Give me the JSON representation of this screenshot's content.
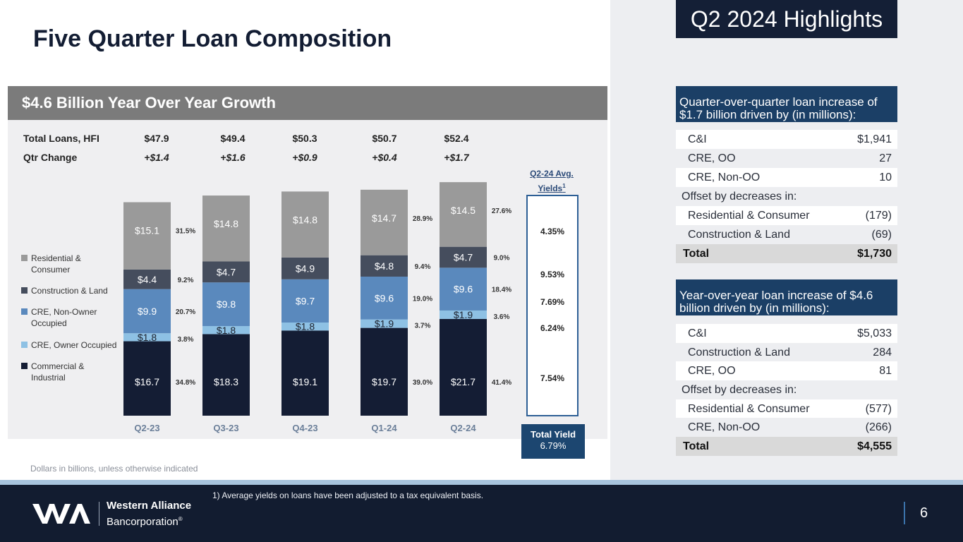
{
  "title": "Five Quarter Loan Composition",
  "highlights_badge": "Q2 2024 Highlights",
  "chart_header": "$4.6 Billion Year Over Year Growth",
  "summary_rows": [
    {
      "label": "Total Loans, HFI",
      "values": [
        "$47.9",
        "$49.4",
        "$50.3",
        "$50.7",
        "$52.4"
      ]
    },
    {
      "label": "Qtr Change",
      "values": [
        "+$1.4",
        "+$1.6",
        "+$0.9",
        "+$0.4",
        "+$1.7"
      ]
    }
  ],
  "legend": [
    {
      "label": "Residential & Consumer",
      "color": "#9a9a9a"
    },
    {
      "label": "Construction & Land",
      "color": "#454d5d"
    },
    {
      "label": "CRE, Non-Owner Occupied",
      "color": "#5a89bd"
    },
    {
      "label": "CRE, Owner Occupied",
      "color": "#8ec1e4"
    },
    {
      "label": "Commercial & Industrial",
      "color": "#141d34"
    }
  ],
  "chart_data": {
    "type": "bar",
    "stacked": true,
    "categories": [
      "Q2-23",
      "Q3-23",
      "Q4-23",
      "Q1-24",
      "Q2-24"
    ],
    "series": [
      {
        "name": "Commercial & Industrial",
        "color": "#141d34",
        "values": [
          16.7,
          18.3,
          19.1,
          19.7,
          21.7
        ],
        "labels": [
          "$16.7",
          "$18.3",
          "$19.1",
          "$19.7",
          "$21.7"
        ]
      },
      {
        "name": "CRE, Owner Occupied",
        "color": "#8ec1e4",
        "values": [
          1.8,
          1.8,
          1.8,
          1.9,
          1.9
        ],
        "labels": [
          "$1.8",
          "$1.8",
          "$1.8",
          "$1.9",
          "$1.9"
        ]
      },
      {
        "name": "CRE, Non-Owner Occupied",
        "color": "#5a89bd",
        "values": [
          9.9,
          9.8,
          9.7,
          9.6,
          9.6
        ],
        "labels": [
          "$9.9",
          "$9.8",
          "$9.7",
          "$9.6",
          "$9.6"
        ]
      },
      {
        "name": "Construction & Land",
        "color": "#454d5d",
        "values": [
          4.4,
          4.7,
          4.9,
          4.8,
          4.7
        ],
        "labels": [
          "$4.4",
          "$4.7",
          "$4.9",
          "$4.8",
          "$4.7"
        ]
      },
      {
        "name": "Residential & Consumer",
        "color": "#9a9a9a",
        "values": [
          15.1,
          14.8,
          14.8,
          14.7,
          14.5
        ],
        "labels": [
          "$15.1",
          "$14.8",
          "$14.8",
          "$14.7",
          "$14.5"
        ]
      }
    ],
    "percent_labels": {
      "Q2-23": [
        "34.8%",
        "3.8%",
        "20.7%",
        "9.2%",
        "31.5%"
      ],
      "Q1-24": [
        "39.0%",
        "3.7%",
        "19.0%",
        "9.4%",
        "28.9%"
      ],
      "Q2-24": [
        "41.4%",
        "3.6%",
        "18.4%",
        "9.0%",
        "27.6%"
      ]
    },
    "ylim": [
      0,
      54
    ],
    "unit": "Dollars in billions"
  },
  "yields": {
    "title_line1": "Q2-24 Avg.",
    "title_line2": "Yields",
    "title_sup": "1",
    "values": [
      {
        "series": "Residential & Consumer",
        "value": "4.35%"
      },
      {
        "series": "Construction & Land",
        "value": "9.53%"
      },
      {
        "series": "CRE, Non-Owner Occupied",
        "value": "7.69%"
      },
      {
        "series": "CRE, Owner Occupied",
        "value": "6.24%"
      },
      {
        "series": "Commercial & Industrial",
        "value": "7.54%"
      }
    ],
    "total_label": "Total Yield",
    "total_value": "6.79%"
  },
  "note": "Dollars in billions, unless otherwise indicated",
  "qoq": {
    "heading": "Quarter-over-quarter loan increase of $1.7 billion driven by (in millions):",
    "increases": [
      {
        "label": "C&I",
        "value": "$1,941"
      },
      {
        "label": "CRE, OO",
        "value": "27"
      },
      {
        "label": "CRE, Non-OO",
        "value": "10"
      }
    ],
    "offset_label": "Offset by decreases in:",
    "decreases": [
      {
        "label": "Residential & Consumer",
        "value": "(179)"
      },
      {
        "label": "Construction & Land",
        "value": "(69)"
      }
    ],
    "total_label": "Total",
    "total_value": "$1,730"
  },
  "yoy": {
    "heading": "Year-over-year loan increase of $4.6 billion driven by (in millions):",
    "increases": [
      {
        "label": "C&I",
        "value": "$5,033"
      },
      {
        "label": "Construction & Land",
        "value": "284"
      },
      {
        "label": "CRE, OO",
        "value": "81"
      }
    ],
    "offset_label": "Offset by decreases in:",
    "decreases": [
      {
        "label": "Residential & Consumer",
        "value": "(577)"
      },
      {
        "label": "CRE, Non-OO",
        "value": "(266)"
      }
    ],
    "total_label": "Total",
    "total_value": "$4,555"
  },
  "footnote": "1)   Average yields on loans have been adjusted to a tax equivalent basis.",
  "logo": {
    "line1": "Western Alliance",
    "line2": "Bancorporation",
    "reg": "®"
  },
  "page_number": "6"
}
